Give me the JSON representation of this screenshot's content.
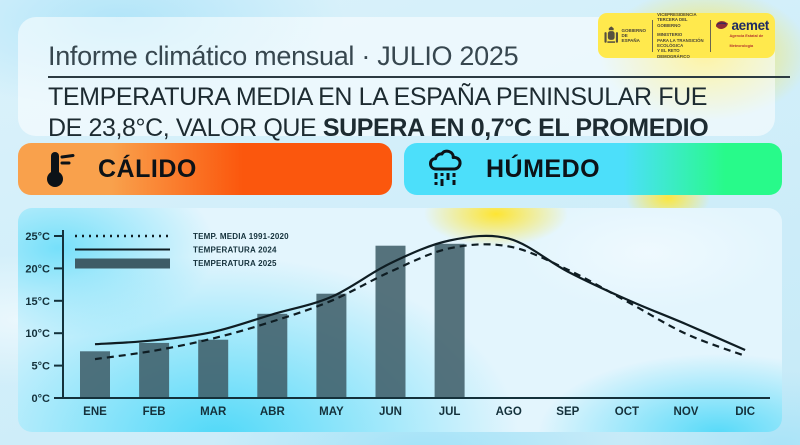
{
  "header": {
    "title": "Informe climático mensual · JULIO 2025",
    "subtitle_line1": "TEMPERATURA MEDIA EN LA ESPAÑA PENINSULAR FUE",
    "subtitle_line2_normal": "DE 23,8°C, VALOR QUE ",
    "subtitle_line2_bold": "SUPERA EN 0,7°C EL PROMEDIO"
  },
  "logos": {
    "panel_color": "#ffe94d",
    "gobierno_lines": [
      "GOBIERNO",
      "DE ESPAÑA"
    ],
    "ministry_lines": [
      "VICEPRESIDENCIA",
      "TERCERA DEL GOBIERNO",
      "MINISTERIO",
      "PARA LA TRANSICIÓN ECOLÓGICA",
      "Y EL RETO DEMOGRÁFICO"
    ],
    "aemet_name": "aemet",
    "aemet_tagline": "Agencia Estatal de Meteorología"
  },
  "badges": [
    {
      "label": "CÁLIDO",
      "icon": "thermometer-icon",
      "gradient": [
        "#F9A14C",
        "#FB570D"
      ]
    },
    {
      "label": "HÚMEDO",
      "icon": "rain-cloud-icon",
      "gradient": [
        "#4CDFFA",
        "#28FA8A"
      ]
    }
  ],
  "chart_data": {
    "type": "bar",
    "title": "",
    "xlabel": "",
    "ylabel": "",
    "categories": [
      "ENE",
      "FEB",
      "MAR",
      "ABR",
      "MAY",
      "JUN",
      "JUL",
      "AGO",
      "SEP",
      "OCT",
      "NOV",
      "DIC"
    ],
    "series": [
      {
        "name": "TEMP. MEDIA 1991-2020",
        "type": "line",
        "style": "dashed",
        "color": "#0f1d23",
        "values": [
          6.0,
          7.3,
          9.2,
          11.8,
          15.0,
          19.5,
          23.1,
          23.4,
          19.8,
          14.9,
          9.9,
          6.5
        ]
      },
      {
        "name": "TEMPERATURA 2024",
        "type": "line",
        "style": "solid",
        "color": "#0f1d23",
        "values": [
          8.3,
          8.9,
          10.2,
          12.9,
          15.6,
          20.8,
          24.3,
          24.6,
          19.5,
          15.2,
          11.4,
          7.4
        ]
      },
      {
        "name": "TEMPERATURA 2025",
        "type": "bar",
        "color": "#3E5C66",
        "values": [
          7.2,
          8.5,
          9.0,
          13.0,
          16.1,
          23.5,
          23.8,
          null,
          null,
          null,
          null,
          null
        ]
      }
    ],
    "ylim": [
      0,
      25
    ],
    "ytick_step": 5,
    "ytick_labels": [
      "0°C",
      "5°C",
      "10°C",
      "15°C",
      "20°C",
      "25°C"
    ],
    "axis_color": "#14313b",
    "grid": false,
    "legend_position": "top-left"
  }
}
